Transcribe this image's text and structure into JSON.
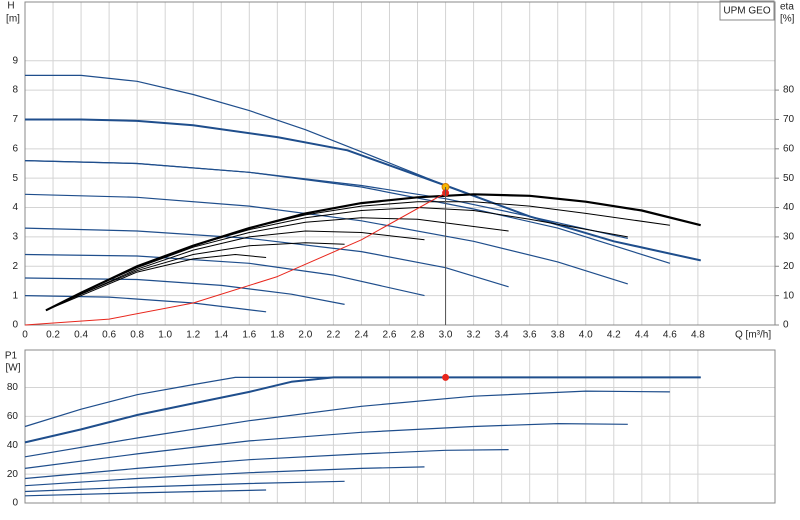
{
  "chart_data": [
    {
      "type": "line",
      "annotation": "UPM GEO",
      "y_label": "H",
      "y_unit": "[m]",
      "y2_label": "eta",
      "y2_unit": "[%]",
      "x_label": "Q [m³/h]",
      "xlim": [
        0,
        5.35
      ],
      "ylim": [
        0,
        11
      ],
      "y2lim": [
        0,
        110
      ],
      "grid": true,
      "xticks": [
        0,
        0.2,
        0.4,
        0.6,
        0.8,
        {
          "value": 1,
          "label": "1.0"
        },
        1.2,
        1.4,
        1.6,
        1.8,
        {
          "value": 2,
          "label": "2.0"
        },
        2.2,
        2.4,
        2.6,
        2.8,
        {
          "value": 3,
          "label": "3.0"
        },
        3.2,
        3.4,
        3.6,
        3.8,
        {
          "value": 4,
          "label": "4.0"
        },
        4.2,
        4.4,
        4.6,
        4.8
      ],
      "yticks": [
        0,
        1,
        2,
        3,
        4,
        5,
        6,
        7,
        8,
        9
      ],
      "y2ticks": [
        0,
        10,
        20,
        30,
        40,
        50,
        60,
        70,
        80
      ],
      "series": [
        {
          "color": "#1f4e8c",
          "width": 1.2,
          "x": [
            0,
            0.4,
            0.8,
            1.2,
            1.6,
            2.0,
            2.4,
            3.0,
            3.6,
            4.2,
            4.82
          ],
          "values": [
            8.5,
            8.5,
            8.3,
            7.85,
            7.3,
            6.65,
            5.9,
            4.75,
            3.7,
            2.85,
            2.2
          ]
        },
        {
          "color": "#1f4e8c",
          "width": 2,
          "x": [
            0,
            0.4,
            0.8,
            1.2,
            1.8,
            2.3,
            3.0,
            3.6,
            4.2,
            4.82
          ],
          "values": [
            7,
            7,
            6.95,
            6.8,
            6.4,
            5.95,
            4.75,
            3.7,
            2.85,
            2.2
          ]
        },
        {
          "color": "#1f4e8c",
          "width": 1.2,
          "x": [
            0,
            0.8,
            1.6,
            2.4,
            3.0,
            3.6,
            4.3
          ],
          "values": [
            5.6,
            5.5,
            5.2,
            4.75,
            4.3,
            3.7,
            2.95
          ]
        },
        {
          "color": "#1f4e8c",
          "width": 1.2,
          "x": [
            0,
            0.8,
            1.6,
            2.4,
            3.2,
            3.8,
            4.6
          ],
          "values": [
            5.6,
            5.5,
            5.2,
            4.7,
            3.95,
            3.3,
            2.1
          ]
        },
        {
          "color": "#1f4e8c",
          "width": 1.2,
          "x": [
            0,
            0.8,
            1.6,
            2.4,
            3.2,
            3.8,
            4.3
          ],
          "values": [
            4.45,
            4.35,
            4.05,
            3.55,
            2.85,
            2.15,
            1.4
          ]
        },
        {
          "color": "#1f4e8c",
          "width": 1.2,
          "x": [
            0,
            0.8,
            1.6,
            2.4,
            3.0,
            3.45
          ],
          "values": [
            3.3,
            3.2,
            2.95,
            2.5,
            1.95,
            1.3
          ]
        },
        {
          "color": "#1f4e8c",
          "width": 1.2,
          "x": [
            0,
            0.8,
            1.6,
            2.2,
            2.85
          ],
          "values": [
            2.4,
            2.35,
            2.1,
            1.7,
            1.0
          ]
        },
        {
          "color": "#1f4e8c",
          "width": 1.2,
          "x": [
            0,
            0.8,
            1.4,
            1.9,
            2.28
          ],
          "values": [
            1.6,
            1.55,
            1.35,
            1.05,
            0.7
          ]
        },
        {
          "color": "#1f4e8c",
          "width": 1.2,
          "x": [
            0,
            0.6,
            1.2,
            1.72
          ],
          "values": [
            1.0,
            0.95,
            0.75,
            0.45
          ]
        },
        {
          "color": "#000000",
          "width": 2.2,
          "axis": "y2",
          "x": [
            0.15,
            0.4,
            0.8,
            1.2,
            1.6,
            2.0,
            2.4,
            2.8,
            3.2,
            3.6,
            4.0,
            4.4,
            4.82
          ],
          "values": [
            5,
            11,
            20,
            27,
            33,
            38,
            41.5,
            43.5,
            44.5,
            44,
            42,
            39,
            34
          ]
        },
        {
          "color": "#000000",
          "width": 1,
          "axis": "y2",
          "x": [
            0.15,
            0.4,
            0.8,
            1.2,
            1.6,
            2.0,
            2.4,
            2.8,
            3.2,
            3.6,
            4.0,
            4.6
          ],
          "values": [
            5,
            11,
            20,
            27,
            33,
            37.5,
            40.5,
            42,
            42,
            40.5,
            38,
            34
          ]
        },
        {
          "color": "#000000",
          "width": 1,
          "axis": "y2",
          "x": [
            0.15,
            0.4,
            0.8,
            1.2,
            1.6,
            2.0,
            2.4,
            2.8,
            3.2,
            3.6,
            4.3
          ],
          "values": [
            5,
            11,
            20,
            27,
            32.5,
            36.5,
            39,
            40,
            39,
            36,
            30
          ]
        },
        {
          "color": "#000000",
          "width": 1,
          "axis": "y2",
          "x": [
            0.15,
            0.4,
            0.8,
            1.2,
            1.6,
            2.0,
            2.4,
            2.8,
            3.45
          ],
          "values": [
            5,
            11,
            19.5,
            26.5,
            31.5,
            35,
            36.5,
            36,
            32
          ]
        },
        {
          "color": "#000000",
          "width": 1,
          "axis": "y2",
          "x": [
            0.15,
            0.4,
            0.8,
            1.2,
            1.6,
            2.0,
            2.4,
            2.85
          ],
          "values": [
            5,
            10.5,
            19,
            25.5,
            30,
            32,
            31.5,
            29
          ]
        },
        {
          "color": "#000000",
          "width": 1,
          "axis": "y2",
          "x": [
            0.15,
            0.4,
            0.8,
            1.2,
            1.6,
            2.0,
            2.28
          ],
          "values": [
            5,
            10.5,
            18.5,
            24,
            27,
            28,
            27.5
          ]
        },
        {
          "color": "#000000",
          "width": 1,
          "axis": "y2",
          "x": [
            0.15,
            0.4,
            0.8,
            1.2,
            1.5,
            1.72
          ],
          "values": [
            5,
            10,
            18,
            22.5,
            24,
            23
          ]
        },
        {
          "color": "#e8261c",
          "width": 1,
          "x": [
            0,
            0.6,
            1.2,
            1.8,
            2.4,
            3.0
          ],
          "values": [
            0,
            0.2,
            0.75,
            1.65,
            2.9,
            4.5
          ]
        },
        {
          "color": "#f5b800",
          "style": "point",
          "x": [
            3.0
          ],
          "values": [
            4.7
          ]
        },
        {
          "color": "#e8261c",
          "style": "point",
          "x": [
            3.0
          ],
          "values": [
            4.5
          ]
        }
      ]
    },
    {
      "type": "line",
      "y_label": "P1",
      "y_unit": "[W]",
      "ylim": [
        0,
        106
      ],
      "yticks": [
        0,
        20,
        40,
        60,
        80
      ],
      "grid": true,
      "series": [
        {
          "color": "#1f4e8c",
          "width": 1.2,
          "x": [
            0,
            0.4,
            0.8,
            1.2,
            1.5,
            2.0,
            4.82
          ],
          "values": [
            53,
            65,
            75,
            82,
            87,
            87,
            87
          ]
        },
        {
          "color": "#1f4e8c",
          "width": 2,
          "x": [
            0,
            0.4,
            0.8,
            1.2,
            1.6,
            1.9,
            2.2,
            4.82
          ],
          "values": [
            42,
            51,
            61,
            69,
            77,
            84,
            87,
            87
          ]
        },
        {
          "color": "#1f4e8c",
          "width": 1.2,
          "x": [
            0,
            0.8,
            1.6,
            2.4,
            3.2,
            4.0,
            4.6
          ],
          "values": [
            32,
            45,
            57,
            67,
            74,
            77.5,
            77
          ]
        },
        {
          "color": "#1f4e8c",
          "width": 1.2,
          "x": [
            0,
            0.8,
            1.6,
            2.4,
            3.2,
            3.8,
            4.3
          ],
          "values": [
            24,
            34,
            43,
            49,
            53,
            55,
            54.5
          ]
        },
        {
          "color": "#1f4e8c",
          "width": 1.2,
          "x": [
            0,
            0.8,
            1.6,
            2.4,
            3.0,
            3.45
          ],
          "values": [
            17,
            24,
            30,
            34,
            36.5,
            37
          ]
        },
        {
          "color": "#1f4e8c",
          "width": 1.2,
          "x": [
            0,
            0.8,
            1.6,
            2.4,
            2.85
          ],
          "values": [
            12,
            17,
            21,
            24,
            25
          ]
        },
        {
          "color": "#1f4e8c",
          "width": 1.2,
          "x": [
            0,
            0.8,
            1.6,
            2.28
          ],
          "values": [
            8,
            11,
            13.5,
            15
          ]
        },
        {
          "color": "#1f4e8c",
          "width": 1.2,
          "x": [
            0,
            0.8,
            1.72
          ],
          "values": [
            5,
            7,
            9
          ]
        },
        {
          "color": "#e8261c",
          "style": "point",
          "x": [
            3.0
          ],
          "values": [
            87
          ]
        }
      ]
    }
  ]
}
